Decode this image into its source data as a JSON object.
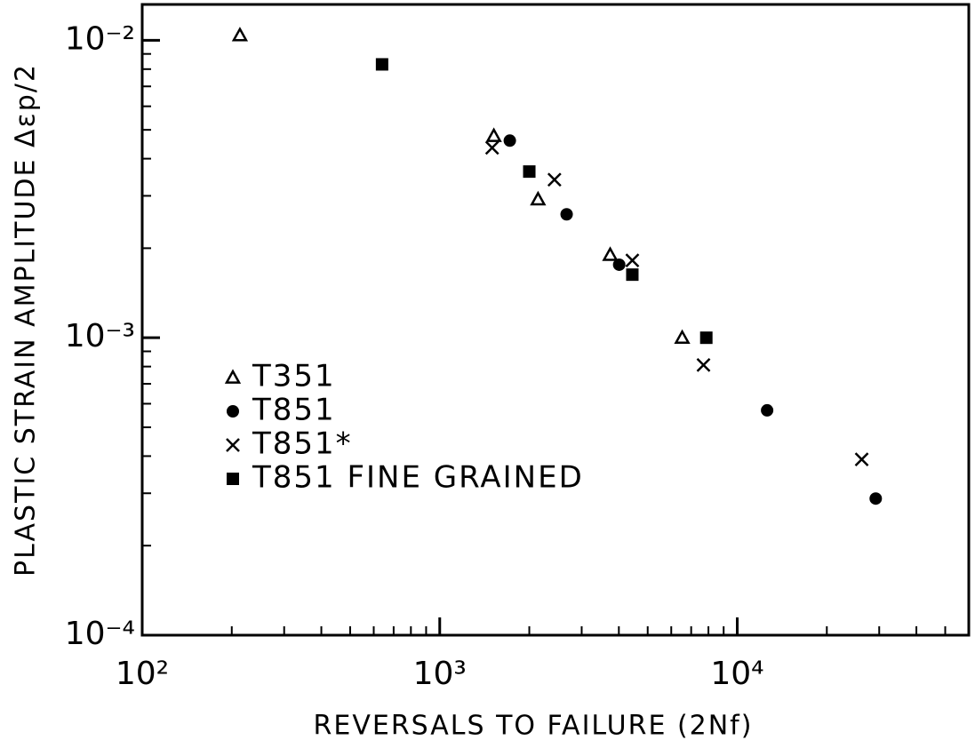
{
  "chart_data": {
    "type": "scatter",
    "xlabel": "REVERSALS TO FAILURE (2Nf)",
    "ylabel": "PLASTIC STRAIN AMPLITUDE Δεp/2",
    "xscale": "log",
    "yscale": "log",
    "xlim": [
      100,
      60000
    ],
    "ylim": [
      0.0001,
      0.0132
    ],
    "xticks": [
      {
        "value": 100,
        "label": "10²"
      },
      {
        "value": 1000,
        "label": "10³"
      },
      {
        "value": 10000,
        "label": "10⁴"
      }
    ],
    "yticks": [
      {
        "value": 0.0001,
        "label": "10⁻⁴"
      },
      {
        "value": 0.001,
        "label": "10⁻³"
      },
      {
        "value": 0.01,
        "label": "10⁻²"
      }
    ],
    "legend": "middle left",
    "series": [
      {
        "name": "T351",
        "color": "#000000",
        "marker": "triangle",
        "x": [
          213,
          1520,
          2140,
          3740,
          6530
        ],
        "values": [
          0.0104,
          0.00477,
          0.00292,
          0.0019,
          0.001
        ]
      },
      {
        "name": "T851",
        "color": "#000000",
        "marker": "circle",
        "x": [
          1720,
          2670,
          4010,
          12600,
          29200
        ],
        "values": [
          0.0046,
          0.0026,
          0.00176,
          0.00057,
          0.000288
        ]
      },
      {
        "name": "T851*",
        "color": "#000000",
        "marker": "cross",
        "x": [
          1500,
          2430,
          4440,
          7700,
          26200
        ],
        "values": [
          0.00435,
          0.0034,
          0.00182,
          0.00081,
          0.00039
        ]
      },
      {
        "name": "T851 FINE GRAINED",
        "color": "#000000",
        "marker": "square",
        "x": [
          640,
          2000,
          4440,
          7870
        ],
        "values": [
          0.0083,
          0.00362,
          0.00163,
          0.001
        ]
      }
    ]
  }
}
